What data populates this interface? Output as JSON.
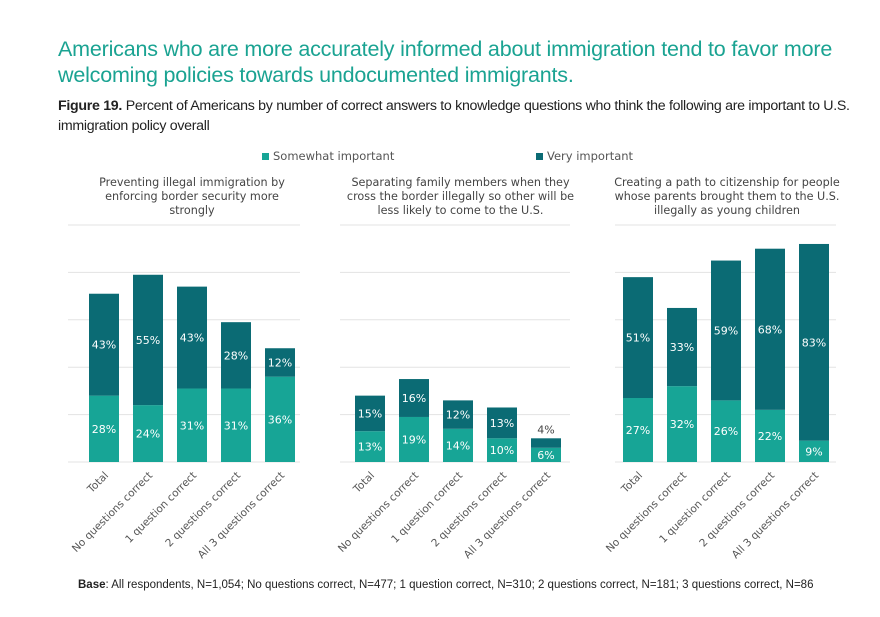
{
  "headline": "Americans who are more accurately informed about immigration tend to favor more welcoming policies towards undocumented immigrants.",
  "figure_label": "Figure 19.",
  "figure_caption": "Percent of Americans by number of correct answers to knowledge questions who think the following are important to U.S. immigration policy overall",
  "footnote_label": "Base",
  "footnote_text": ": All respondents, N=1,054; No questions correct, N=477; 1 question correct, N=310; 2 questions correct, N=181; 3 questions correct, N=86",
  "colors": {
    "somewhat": "#17a596",
    "very": "#0b6b74",
    "grid": "#e3e3e3",
    "headline": "#1aa392"
  },
  "chart_data": [
    {
      "type": "bar",
      "stacked": true,
      "title": "Preventing illegal immigration by enforcing border security more strongly",
      "categories": [
        "Total",
        "No questions correct",
        "1 question correct",
        "2 questions correct",
        "All 3 questions correct"
      ],
      "series": [
        {
          "name": "Somewhat important",
          "values": [
            28,
            24,
            31,
            31,
            36
          ]
        },
        {
          "name": "Very important",
          "values": [
            43,
            55,
            43,
            28,
            12
          ]
        }
      ],
      "labels": {
        "Somewhat important": [
          "28%",
          "24%",
          "31%",
          "31%",
          "36%"
        ],
        "Very important": [
          "43%",
          "55%",
          "43%",
          "28%",
          "12%"
        ]
      },
      "ylim": [
        0,
        100
      ],
      "grid": true,
      "legend": "top"
    },
    {
      "type": "bar",
      "stacked": true,
      "title": "Separating family members when they cross the border illegally so other will be less likely to come to the U.S.",
      "categories": [
        "Total",
        "No questions correct",
        "1 question correct",
        "2 questions correct",
        "All 3 questions correct"
      ],
      "series": [
        {
          "name": "Somewhat important",
          "values": [
            13,
            19,
            14,
            10,
            6
          ]
        },
        {
          "name": "Very important",
          "values": [
            15,
            16,
            12,
            13,
            4
          ]
        }
      ],
      "labels": {
        "Somewhat important": [
          "13%",
          "19%",
          "14%",
          "10%",
          "6%"
        ],
        "Very important": [
          "15%",
          "16%",
          "12%",
          "13%",
          "4%"
        ]
      },
      "ylim": [
        0,
        100
      ],
      "grid": true,
      "legend": "top"
    },
    {
      "type": "bar",
      "stacked": true,
      "title": "Creating a path to citizenship for people whose parents brought them to the U.S. illegally as young children",
      "categories": [
        "Total",
        "No questions correct",
        "1 question correct",
        "2 questions correct",
        "All 3 questions correct"
      ],
      "series": [
        {
          "name": "Somewhat important",
          "values": [
            27,
            32,
            26,
            22,
            9
          ]
        },
        {
          "name": "Very important",
          "values": [
            51,
            33,
            59,
            68,
            83
          ]
        }
      ],
      "labels": {
        "Somewhat important": [
          "27%",
          "32%",
          "26%",
          "22%",
          "9%"
        ],
        "Very important": [
          "51%",
          "33%",
          "59%",
          "68%",
          "83%"
        ]
      },
      "ylim": [
        0,
        100
      ],
      "grid": true,
      "legend": "top"
    }
  ],
  "legend": [
    {
      "name": "Somewhat important",
      "color_key": "somewhat"
    },
    {
      "name": "Very important",
      "color_key": "very"
    }
  ]
}
